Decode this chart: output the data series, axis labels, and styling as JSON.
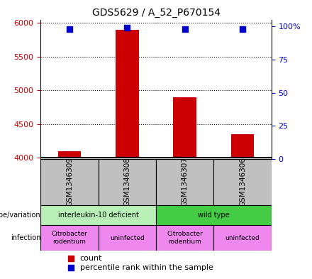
{
  "title": "GDS5629 / A_52_P670154",
  "samples": [
    "GSM1346309",
    "GSM1346308",
    "GSM1346307",
    "GSM1346306"
  ],
  "counts": [
    4100,
    5900,
    4900,
    4350
  ],
  "percentile_ranks": [
    98,
    99,
    98,
    98
  ],
  "ylim_left": [
    3980,
    6050
  ],
  "yticks_left": [
    4000,
    4500,
    5000,
    5500,
    6000
  ],
  "ylim_right": [
    0,
    105
  ],
  "yticks_right": [
    0,
    25,
    50,
    75,
    100
  ],
  "yticklabels_right": [
    "0",
    "25",
    "50",
    "75",
    "100%"
  ],
  "bar_color": "#cc0000",
  "dot_color": "#0000cc",
  "bar_bottom": 4000,
  "dot_yval": 5820,
  "genotype_groups": [
    {
      "label": "interleukin-10 deficient",
      "cols": [
        0,
        1
      ],
      "color": "#b8f0b8"
    },
    {
      "label": "wild type",
      "cols": [
        2,
        3
      ],
      "color": "#44cc44"
    }
  ],
  "infection_groups": [
    {
      "label": "Citrobacter\nrodentium",
      "col": 0,
      "color": "#ee88ee"
    },
    {
      "label": "uninfected",
      "col": 1,
      "color": "#ee88ee"
    },
    {
      "label": "Citrobacter\nrodentium",
      "col": 2,
      "color": "#ee88ee"
    },
    {
      "label": "uninfected",
      "col": 3,
      "color": "#ee88ee"
    }
  ],
  "left_label_genotype": "genotype/variation",
  "left_label_infection": "infection",
  "legend_items": [
    {
      "label": "count",
      "color": "#cc0000",
      "marker": "s"
    },
    {
      "label": "percentile rank within the sample",
      "color": "#0000cc",
      "marker": "s"
    }
  ],
  "left_tick_color": "#cc0000",
  "right_tick_color": "#0000cc",
  "grid_color": "#000000",
  "sample_panel_color": "#c0c0c0",
  "figsize": [
    4.4,
    3.93
  ],
  "dpi": 100
}
